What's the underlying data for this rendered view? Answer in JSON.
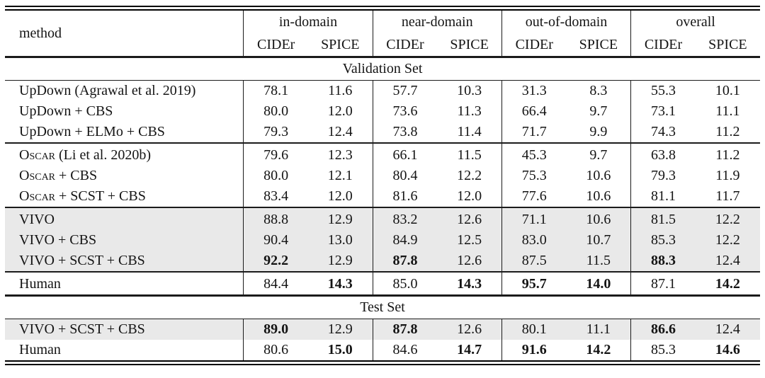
{
  "table": {
    "method_header": "method",
    "groups": [
      "in-domain",
      "near-domain",
      "out-of-domain",
      "overall"
    ],
    "metrics": [
      "CIDEr",
      "SPICE"
    ],
    "sections": [
      {
        "label": "Validation Set",
        "rows": [
          {
            "method": [
              {
                "t": "UpDown (Agrawal et al. 2019)"
              }
            ],
            "hl": false,
            "rule": false,
            "bold": [],
            "vals": [
              "78.1",
              "11.6",
              "57.7",
              "10.3",
              "31.3",
              "8.3",
              "55.3",
              "10.1"
            ]
          },
          {
            "method": [
              {
                "t": "UpDown + CBS"
              }
            ],
            "hl": false,
            "rule": false,
            "bold": [],
            "vals": [
              "80.0",
              "12.0",
              "73.6",
              "11.3",
              "66.4",
              "9.7",
              "73.1",
              "11.1"
            ]
          },
          {
            "method": [
              {
                "t": "UpDown + ELMo + CBS"
              }
            ],
            "hl": false,
            "rule": false,
            "bold": [],
            "vals": [
              "79.3",
              "12.4",
              "73.8",
              "11.4",
              "71.7",
              "9.9",
              "74.3",
              "11.2"
            ]
          },
          {
            "method": [
              {
                "t": "Oscar",
                "sc": true
              },
              {
                "t": " (Li et al. 2020b)"
              }
            ],
            "hl": false,
            "rule": true,
            "bold": [],
            "vals": [
              "79.6",
              "12.3",
              "66.1",
              "11.5",
              "45.3",
              "9.7",
              "63.8",
              "11.2"
            ]
          },
          {
            "method": [
              {
                "t": "Oscar",
                "sc": true
              },
              {
                "t": " + CBS"
              }
            ],
            "hl": false,
            "rule": false,
            "bold": [],
            "vals": [
              "80.0",
              "12.1",
              "80.4",
              "12.2",
              "75.3",
              "10.6",
              "79.3",
              "11.9"
            ]
          },
          {
            "method": [
              {
                "t": "Oscar",
                "sc": true
              },
              {
                "t": " + SCST + CBS"
              }
            ],
            "hl": false,
            "rule": false,
            "bold": [],
            "vals": [
              "83.4",
              "12.0",
              "81.6",
              "12.0",
              "77.6",
              "10.6",
              "81.1",
              "11.7"
            ]
          },
          {
            "method": [
              {
                "t": "VIVO"
              }
            ],
            "hl": true,
            "rule": true,
            "bold": [],
            "vals": [
              "88.8",
              "12.9",
              "83.2",
              "12.6",
              "71.1",
              "10.6",
              "81.5",
              "12.2"
            ]
          },
          {
            "method": [
              {
                "t": "VIVO + CBS"
              }
            ],
            "hl": true,
            "rule": false,
            "bold": [],
            "vals": [
              "90.4",
              "13.0",
              "84.9",
              "12.5",
              "83.0",
              "10.7",
              "85.3",
              "12.2"
            ]
          },
          {
            "method": [
              {
                "t": "VIVO + SCST + CBS"
              }
            ],
            "hl": true,
            "rule": false,
            "bold": [
              0,
              2,
              6
            ],
            "vals": [
              "92.2",
              "12.9",
              "87.8",
              "12.6",
              "87.5",
              "11.5",
              "88.3",
              "12.4"
            ]
          },
          {
            "method": [
              {
                "t": "Human"
              }
            ],
            "hl": false,
            "rule": true,
            "bold": [
              1,
              3,
              4,
              5,
              7
            ],
            "vals": [
              "84.4",
              "14.3",
              "85.0",
              "14.3",
              "95.7",
              "14.0",
              "87.1",
              "14.2"
            ]
          }
        ]
      },
      {
        "label": "Test Set",
        "rows": [
          {
            "method": [
              {
                "t": "VIVO + SCST + CBS"
              }
            ],
            "hl": true,
            "rule": false,
            "bold": [
              0,
              2,
              6
            ],
            "vals": [
              "89.0",
              "12.9",
              "87.8",
              "12.6",
              "80.1",
              "11.1",
              "86.6",
              "12.4"
            ]
          },
          {
            "method": [
              {
                "t": "Human"
              }
            ],
            "hl": false,
            "rule": false,
            "bold": [
              1,
              3,
              4,
              5,
              7
            ],
            "vals": [
              "80.6",
              "15.0",
              "84.6",
              "14.7",
              "91.6",
              "14.2",
              "85.3",
              "14.6"
            ]
          }
        ]
      }
    ]
  },
  "colors": {
    "highlight": "#e9e9e9",
    "text": "#141414",
    "rule": "#1b1b1b"
  }
}
